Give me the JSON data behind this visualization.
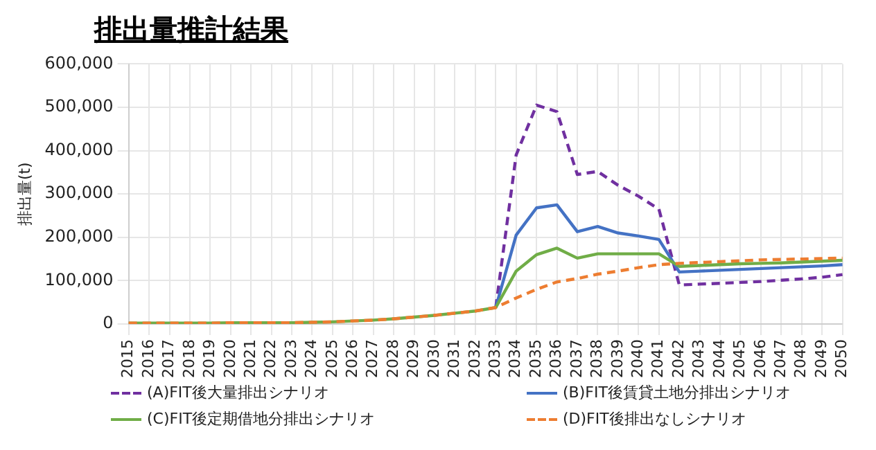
{
  "chart_data": {
    "type": "line",
    "title": "排出量推計結果",
    "ylabel": "排出量(t)",
    "categories": [
      "2015",
      "2016",
      "2017",
      "2018",
      "2019",
      "2020",
      "2021",
      "2022",
      "2023",
      "2024",
      "2025",
      "2026",
      "2027",
      "2028",
      "2029",
      "2030",
      "2031",
      "2032",
      "2033",
      "2034",
      "2035",
      "2036",
      "2037",
      "2038",
      "2039",
      "2040",
      "2041",
      "2042",
      "2043",
      "2044",
      "2045",
      "2046",
      "2047",
      "2048",
      "2049",
      "2050"
    ],
    "ylim": [
      0,
      600000
    ],
    "yticks": [
      {
        "value": 0,
        "label": "0"
      },
      {
        "value": 100000,
        "label": "100,000"
      },
      {
        "value": 200000,
        "label": "200,000"
      },
      {
        "value": 300000,
        "label": "300,000"
      },
      {
        "value": 400000,
        "label": "400,000"
      },
      {
        "value": 500000,
        "label": "500,000"
      },
      {
        "value": 600000,
        "label": "600,000"
      }
    ],
    "grid": true,
    "legend": "bottom",
    "marker": "none",
    "series": [
      {
        "name": "(A)FIT後大量排出シナリオ",
        "color": "#7030a0",
        "line_style": "dashed",
        "values": [
          null,
          null,
          null,
          null,
          null,
          null,
          null,
          null,
          null,
          null,
          null,
          null,
          null,
          null,
          null,
          null,
          null,
          null,
          38000,
          390000,
          505000,
          490000,
          345000,
          352000,
          320000,
          295000,
          265000,
          90000,
          92000,
          94000,
          96000,
          98000,
          101000,
          104000,
          108000,
          114000
        ]
      },
      {
        "name": "(B)FIT後賃貸土地分排出シナリオ",
        "color": "#4472c4",
        "line_style": "solid",
        "values": [
          null,
          null,
          null,
          null,
          null,
          null,
          null,
          null,
          null,
          null,
          null,
          null,
          null,
          null,
          null,
          null,
          null,
          null,
          38000,
          205000,
          268000,
          275000,
          213000,
          225000,
          210000,
          203000,
          195000,
          120000,
          122000,
          124000,
          126000,
          128000,
          130000,
          132000,
          134000,
          137000
        ]
      },
      {
        "name": "(C)FIT後定期借地分排出シナリオ",
        "color": "#70ad47",
        "line_style": "solid",
        "values": [
          2000,
          2000,
          2000,
          2000,
          2000,
          3000,
          3000,
          3000,
          3000,
          4000,
          5000,
          7000,
          9000,
          12000,
          16000,
          20000,
          25000,
          30000,
          38000,
          122000,
          160000,
          175000,
          152000,
          162000,
          162000,
          162000,
          162000,
          133000,
          135000,
          137000,
          139000,
          140000,
          141000,
          143000,
          145000,
          147000
        ]
      },
      {
        "name": "(D)FIT後排出なしシナリオ",
        "color": "#ed7d31",
        "line_style": "dashed",
        "values": [
          2000,
          2000,
          2000,
          2000,
          2000,
          3000,
          3000,
          3000,
          3000,
          4000,
          5000,
          7000,
          9000,
          12000,
          16000,
          20000,
          25000,
          30000,
          38000,
          60000,
          80000,
          97000,
          105000,
          115000,
          122000,
          130000,
          137000,
          140000,
          142000,
          144000,
          146000,
          148000,
          149000,
          150000,
          151000,
          152000
        ]
      }
    ]
  }
}
